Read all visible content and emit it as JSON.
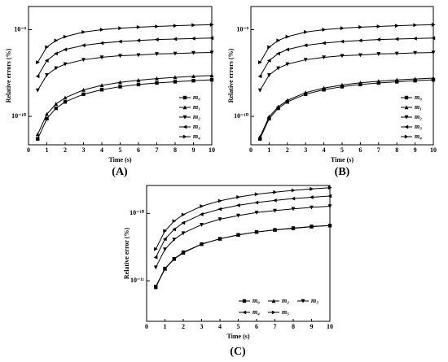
{
  "chart_data": [
    {
      "type": "line",
      "label": "(A)",
      "xlabel": "Time (s)",
      "ylabel": "Relative errors (%)",
      "ylog": true,
      "legend": "lower right",
      "legend_columns": 1,
      "color": "#000000",
      "xlim": [
        0,
        10
      ],
      "xticks": [
        0,
        1,
        2,
        3,
        4,
        5,
        6,
        7,
        8,
        9,
        10
      ],
      "ylim": [
        4.7e-11,
        1.85e-09
      ],
      "yticks": [
        {
          "value": 1e-10,
          "label": "10⁻¹⁰"
        },
        {
          "value": 1e-09,
          "label": "10⁻⁹"
        }
      ],
      "x": [
        0.5,
        1,
        1.5,
        2,
        3,
        4,
        5,
        6,
        7,
        8,
        9,
        10
      ],
      "series": [
        {
          "name": "m₀",
          "marker": "square",
          "values": [
            5.5e-11,
            9.4e-11,
            1.24e-10,
            1.47e-10,
            1.8e-10,
            2.03e-10,
            2.2e-10,
            2.33e-10,
            2.43e-10,
            2.51e-10,
            2.58e-10,
            2.64e-10
          ]
        },
        {
          "name": "m₁",
          "marker": "up",
          "values": [
            6.2e-11,
            1.06e-10,
            1.39e-10,
            1.64e-10,
            2.02e-10,
            2.28e-10,
            2.47e-10,
            2.61e-10,
            2.73e-10,
            2.82e-10,
            2.9e-10,
            2.96e-10
          ]
        },
        {
          "name": "m₂",
          "marker": "down",
          "values": [
            2e-10,
            3e-10,
            3.6e-10,
            4e-10,
            4.5e-10,
            4.8e-10,
            5e-10,
            5.1e-10,
            5.25e-10,
            5.3e-10,
            5.4e-10,
            5.45e-10
          ]
        },
        {
          "name": "m₃",
          "marker": "left",
          "values": [
            2.9e-10,
            4.4e-10,
            5.3e-10,
            5.9e-10,
            6.6e-10,
            7e-10,
            7.3e-10,
            7.5e-10,
            7.7e-10,
            7.8e-10,
            7.9e-10,
            8e-10
          ]
        },
        {
          "name": "m₄",
          "marker": "right",
          "values": [
            4.2e-10,
            6.3e-10,
            7.5e-10,
            8.3e-10,
            9.4e-10,
            1e-09,
            1.04e-09,
            1.07e-09,
            1.09e-09,
            1.11e-09,
            1.13e-09,
            1.14e-09
          ]
        }
      ]
    },
    {
      "type": "line",
      "label": "(B)",
      "xlabel": "Time (s)",
      "ylabel": "Relative errors (%)",
      "ylog": true,
      "legend": "lower right",
      "legend_columns": 1,
      "color": "#000000",
      "xlim": [
        0,
        10
      ],
      "xticks": [
        0,
        1,
        2,
        3,
        4,
        5,
        6,
        7,
        8,
        9,
        10
      ],
      "ylim": [
        4.7e-11,
        1.85e-09
      ],
      "yticks": [
        {
          "value": 1e-10,
          "label": "10⁻¹⁰"
        },
        {
          "value": 1e-09,
          "label": "10⁻⁹"
        }
      ],
      "x": [
        0.5,
        1,
        1.5,
        2,
        3,
        4,
        5,
        6,
        7,
        8,
        9,
        10
      ],
      "series": [
        {
          "name": "m₀",
          "marker": "square",
          "values": [
            5.5e-11,
            9.4e-11,
            1.24e-10,
            1.47e-10,
            1.8e-10,
            2.03e-10,
            2.2e-10,
            2.33e-10,
            2.43e-10,
            2.51e-10,
            2.58e-10,
            2.64e-10
          ]
        },
        {
          "name": "m₁",
          "marker": "up",
          "values": [
            5.8e-11,
            9.9e-11,
            1.29e-10,
            1.53e-10,
            1.88e-10,
            2.12e-10,
            2.3e-10,
            2.44e-10,
            2.54e-10,
            2.63e-10,
            2.7e-10,
            2.76e-10
          ]
        },
        {
          "name": "m₂",
          "marker": "down",
          "values": [
            2e-10,
            3e-10,
            3.6e-10,
            4e-10,
            4.5e-10,
            4.8e-10,
            5e-10,
            5.1e-10,
            5.25e-10,
            5.3e-10,
            5.4e-10,
            5.45e-10
          ]
        },
        {
          "name": "m₃",
          "marker": "left",
          "values": [
            2.9e-10,
            4.4e-10,
            5.3e-10,
            5.9e-10,
            6.6e-10,
            7e-10,
            7.3e-10,
            7.5e-10,
            7.7e-10,
            7.8e-10,
            7.9e-10,
            8e-10
          ]
        },
        {
          "name": "m₄",
          "marker": "right",
          "values": [
            4.2e-10,
            6.3e-10,
            7.5e-10,
            8.3e-10,
            9.4e-10,
            1e-09,
            1.04e-09,
            1.07e-09,
            1.09e-09,
            1.11e-09,
            1.13e-09,
            1.14e-09
          ]
        }
      ]
    },
    {
      "type": "line",
      "label": "(C)",
      "xlabel": "Time (s)",
      "ylabel": "Relative error (%)",
      "ylog": true,
      "legend": "lower right",
      "legend_columns": 3,
      "color": "#000000",
      "xlim": [
        0,
        10
      ],
      "xticks": [
        0,
        1,
        2,
        3,
        4,
        5,
        6,
        7,
        8,
        9,
        10
      ],
      "ylim": [
        2.5e-12,
        2.6e-10
      ],
      "yticks": [
        {
          "value": 1e-11,
          "label": "10⁻¹¹"
        },
        {
          "value": 1e-10,
          "label": "10⁻¹⁰"
        }
      ],
      "x": [
        0.5,
        1,
        1.5,
        2,
        3,
        4,
        5,
        6,
        7,
        8,
        9,
        10
      ],
      "series": [
        {
          "name": "m₀",
          "marker": "square",
          "values": [
            8.2e-12,
            1.52e-11,
            2.12e-11,
            2.65e-11,
            3.5e-11,
            4.2e-11,
            4.8e-11,
            5.3e-11,
            5.7e-11,
            6.05e-11,
            6.4e-11,
            6.6e-11
          ]
        },
        {
          "name": "m₂",
          "marker": "up",
          "values": [
            8e-12,
            1.5e-11,
            2.1e-11,
            2.6e-11,
            3.5e-11,
            4.2e-11,
            4.8e-11,
            5.3e-11,
            5.7e-11,
            6e-11,
            6.35e-11,
            6.6e-11
          ]
        },
        {
          "name": "m₃",
          "marker": "down",
          "values": [
            1.58e-11,
            2.93e-11,
            4.1e-11,
            5.1e-11,
            6.8e-11,
            8.2e-11,
            9.3e-11,
            1.03e-10,
            1.1e-10,
            1.17e-10,
            1.23e-10,
            1.28e-10
          ]
        },
        {
          "name": "m₄",
          "marker": "left",
          "values": [
            2.23e-11,
            4.15e-11,
            5.8e-11,
            7.25e-11,
            9.7e-11,
            1.16e-10,
            1.32e-10,
            1.45e-10,
            1.56e-10,
            1.66e-10,
            1.74e-10,
            1.81e-10
          ]
        },
        {
          "name": "m₅",
          "marker": "right",
          "values": [
            2.96e-11,
            5.5e-11,
            7.7e-11,
            9.6e-11,
            1.28e-10,
            1.54e-10,
            1.75e-10,
            1.93e-10,
            2.07e-10,
            2.2e-10,
            2.31e-10,
            2.41e-10
          ]
        }
      ]
    }
  ]
}
